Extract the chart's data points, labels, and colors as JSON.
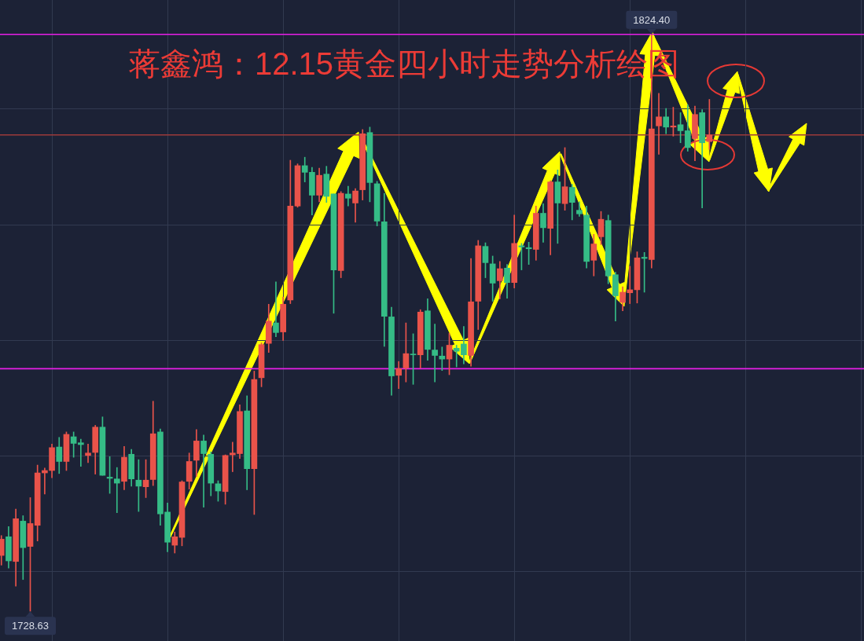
{
  "chart_data": {
    "type": "candlestick",
    "title": "蒋鑫鸿：12.15黄金四小时走势分析绘图",
    "categories": [
      null,
      null,
      null,
      null,
      null,
      null,
      null,
      null,
      null,
      null,
      null,
      null,
      null,
      null,
      null,
      null,
      null,
      null,
      null,
      null,
      null,
      null,
      null,
      null,
      null,
      null,
      null,
      null,
      null,
      null,
      null,
      null,
      null,
      null,
      null,
      null,
      null,
      null,
      null,
      null,
      null,
      null,
      null,
      null,
      null,
      null,
      null,
      null,
      null,
      null,
      null,
      null,
      null,
      null,
      null,
      null,
      null,
      null,
      null,
      null,
      null,
      null,
      null,
      null,
      null,
      null,
      null,
      null,
      null,
      null,
      null,
      null,
      null,
      null,
      null,
      null,
      null,
      null,
      null,
      null,
      null,
      null,
      null,
      null,
      null,
      null,
      null,
      null,
      null,
      null,
      null,
      null,
      null,
      null,
      null,
      null,
      null,
      null,
      null
    ],
    "ohlc": [
      [
        1737.9,
        1741.2,
        1736.3,
        1740.6
      ],
      [
        1741.0,
        1742.7,
        1735.8,
        1737.0
      ],
      [
        1736.9,
        1745.6,
        1732.8,
        1744.0
      ],
      [
        1743.6,
        1744.5,
        1733.9,
        1739.2
      ],
      [
        1739.4,
        1747.5,
        1728.63,
        1743.2
      ],
      [
        1742.9,
        1752.9,
        1740.3,
        1751.6
      ],
      [
        1751.6,
        1752.4,
        1748.1,
        1752.0
      ],
      [
        1752.0,
        1756.4,
        1750.8,
        1755.8
      ],
      [
        1755.9,
        1757.5,
        1751.5,
        1753.5
      ],
      [
        1753.5,
        1758.4,
        1752.0,
        1758.0
      ],
      [
        1757.6,
        1758.4,
        1754.2,
        1756.5
      ],
      [
        1756.6,
        1757.2,
        1752.7,
        1756.3
      ],
      [
        1754.5,
        1756.4,
        1753.3,
        1754.9
      ],
      [
        1755.0,
        1759.5,
        1751.4,
        1759.2
      ],
      [
        1759.2,
        1760.9,
        1751.2,
        1751.2
      ],
      [
        1750.9,
        1754.3,
        1748.2,
        1750.7
      ],
      [
        1750.6,
        1752.5,
        1745.0,
        1749.9
      ],
      [
        1750.2,
        1756.0,
        1748.8,
        1754.2
      ],
      [
        1754.7,
        1755.5,
        1749.4,
        1750.6
      ],
      [
        1750.4,
        1753.8,
        1745.2,
        1749.4
      ],
      [
        1749.3,
        1753.8,
        1747.5,
        1750.4
      ],
      [
        1750.5,
        1763.5,
        1749.5,
        1758.1
      ],
      [
        1758.4,
        1758.9,
        1742.9,
        1744.8
      ],
      [
        1745.1,
        1746.6,
        1738.5,
        1740.1
      ],
      [
        1739.6,
        1741.8,
        1738.3,
        1741.0
      ],
      [
        1740.9,
        1750.3,
        1739.5,
        1750.1
      ],
      [
        1750.2,
        1754.9,
        1748.9,
        1753.5
      ],
      [
        1753.7,
        1758.8,
        1751.0,
        1756.9
      ],
      [
        1756.9,
        1757.9,
        1745.9,
        1754.8
      ],
      [
        1754.7,
        1755.1,
        1747.8,
        1749.9
      ],
      [
        1749.8,
        1750.3,
        1746.9,
        1748.6
      ],
      [
        1748.5,
        1754.6,
        1746.4,
        1754.5
      ],
      [
        1754.6,
        1756.7,
        1751.8,
        1754.9
      ],
      [
        1754.8,
        1762.9,
        1754.0,
        1761.8
      ],
      [
        1761.9,
        1764.4,
        1748.8,
        1752.3
      ],
      [
        1752.3,
        1768.5,
        1744.7,
        1767.1
      ],
      [
        1767.4,
        1773.2,
        1765.9,
        1772.9
      ],
      [
        1773.1,
        1779.6,
        1771.6,
        1776.8
      ],
      [
        1776.5,
        1783.3,
        1774.2,
        1774.9
      ],
      [
        1775.0,
        1780.8,
        1773.6,
        1779.6
      ],
      [
        1780.3,
        1803.5,
        1779.7,
        1795.9
      ],
      [
        1795.9,
        1802.9,
        1795.7,
        1802.6
      ],
      [
        1802.6,
        1804.0,
        1799.9,
        1801.5
      ],
      [
        1801.5,
        1802.3,
        1794.4,
        1797.7
      ],
      [
        1797.7,
        1802.2,
        1796.6,
        1801.0
      ],
      [
        1801.2,
        1802.5,
        1796.5,
        1797.5
      ],
      [
        1797.9,
        1797.9,
        1778.1,
        1785.3
      ],
      [
        1785.2,
        1798.3,
        1784.0,
        1798.0
      ],
      [
        1797.9,
        1799.2,
        1795.9,
        1797.2
      ],
      [
        1796.4,
        1798.8,
        1793.2,
        1798.4
      ],
      [
        1798.6,
        1808.6,
        1796.9,
        1807.9
      ],
      [
        1808.1,
        1809.0,
        1796.6,
        1799.8
      ],
      [
        1799.6,
        1800.0,
        1792.6,
        1793.4
      ],
      [
        1793.3,
        1798.0,
        1772.6,
        1777.6
      ],
      [
        1777.5,
        1779.1,
        1764.5,
        1767.7
      ],
      [
        1767.8,
        1770.1,
        1765.6,
        1768.9
      ],
      [
        1769.0,
        1776.5,
        1766.7,
        1771.4
      ],
      [
        1771.3,
        1774.7,
        1766.3,
        1771.2
      ],
      [
        1771.2,
        1778.7,
        1769.0,
        1778.3
      ],
      [
        1778.5,
        1780.5,
        1770.3,
        1772.1
      ],
      [
        1772.0,
        1776.3,
        1766.7,
        1771.1
      ],
      [
        1771.0,
        1772.5,
        1768.6,
        1770.5
      ],
      [
        1770.5,
        1774.8,
        1767.9,
        1772.8
      ],
      [
        1772.3,
        1772.8,
        1769.2,
        1771.8
      ],
      [
        1773.0,
        1775.9,
        1769.7,
        1771.2
      ],
      [
        1771.1,
        1787.2,
        1769.3,
        1780.0
      ],
      [
        1780.1,
        1790.2,
        1775.4,
        1789.3
      ],
      [
        1789.2,
        1789.8,
        1784.0,
        1786.5
      ],
      [
        1786.3,
        1787.6,
        1780.1,
        1783.1
      ],
      [
        1783.5,
        1786.7,
        1780.5,
        1785.5
      ],
      [
        1785.6,
        1786.2,
        1780.6,
        1783.2
      ],
      [
        1783.2,
        1794.4,
        1782.3,
        1789.7
      ],
      [
        1789.3,
        1789.7,
        1785.3,
        1789.1
      ],
      [
        1789.0,
        1789.9,
        1786.2,
        1788.8
      ],
      [
        1788.7,
        1795.9,
        1786.9,
        1794.7
      ],
      [
        1794.7,
        1796.3,
        1789.9,
        1792.3
      ],
      [
        1792.2,
        1800.1,
        1787.8,
        1799.9
      ],
      [
        1799.9,
        1801.9,
        1789.7,
        1796.4
      ],
      [
        1796.3,
        1805.6,
        1795.2,
        1799.1
      ],
      [
        1799.0,
        1799.5,
        1793.6,
        1796.5
      ],
      [
        1795.2,
        1796.6,
        1794.2,
        1794.6
      ],
      [
        1794.4,
        1795.9,
        1785.6,
        1786.7
      ],
      [
        1786.9,
        1791.2,
        1784.3,
        1789.6
      ],
      [
        1790.8,
        1795.0,
        1789.5,
        1793.7
      ],
      [
        1793.5,
        1794.4,
        1783.0,
        1784.3
      ],
      [
        1784.5,
        1784.9,
        1776.8,
        1781.0
      ],
      [
        1779.9,
        1782.5,
        1778.5,
        1781.6
      ],
      [
        1781.5,
        1785.9,
        1779.7,
        1782.0
      ],
      [
        1782.0,
        1788.3,
        1779.8,
        1787.3
      ],
      [
        1787.4,
        1788.2,
        1781.6,
        1787.2
      ],
      [
        1787.0,
        1824.4,
        1785.6,
        1808.7
      ],
      [
        1809.2,
        1814.6,
        1804.5,
        1810.7
      ],
      [
        1810.7,
        1812.1,
        1807.9,
        1809.0
      ],
      [
        1809.0,
        1812.3,
        1807.5,
        1809.2
      ],
      [
        1809.4,
        1811.4,
        1806.4,
        1808.4
      ],
      [
        1808.4,
        1812.7,
        1805.0,
        1805.6
      ],
      [
        1807.1,
        1812.5,
        1803.4,
        1811.1
      ],
      [
        1811.4,
        1811.9,
        1795.6,
        1806.4
      ],
      [
        1806.6,
        1813.6,
        1805.3,
        1807.7
      ]
    ],
    "colors": [
      "#e9534a",
      "#35bc86",
      "#e9534a",
      "#35bc86",
      "#e9534a",
      "#e9534a",
      "#e9534a",
      "#e9534a",
      "#35bc86",
      "#e9534a",
      "#35bc86",
      "#35bc86",
      "#e9534a",
      "#e9534a",
      "#35bc86",
      "#35bc86",
      "#35bc86",
      "#e9534a",
      "#35bc86",
      "#35bc86",
      "#e9534a",
      "#e9534a",
      "#35bc86",
      "#35bc86",
      "#e9534a",
      "#e9534a",
      "#e9534a",
      "#e9534a",
      "#35bc86",
      "#35bc86",
      "#35bc86",
      "#e9534a",
      "#e9534a",
      "#e9534a",
      "#35bc86",
      "#e9534a",
      "#e9534a",
      "#e9534a",
      "#35bc86",
      "#e9534a",
      "#e9534a",
      "#e9534a",
      "#35bc86",
      "#35bc86",
      "#e9534a",
      "#35bc86",
      "#35bc86",
      "#e9534a",
      "#35bc86",
      "#e9534a",
      "#e9534a",
      "#35bc86",
      "#35bc86",
      "#35bc86",
      "#35bc86",
      "#e9534a",
      "#e9534a",
      "#35bc86",
      "#e9534a",
      "#35bc86",
      "#35bc86",
      "#35bc86",
      "#e9534a",
      "#35bc86",
      "#35bc86",
      "#e9534a",
      "#e9534a",
      "#35bc86",
      "#35bc86",
      "#e9534a",
      "#35bc86",
      "#e9534a",
      "#35bc86",
      "#35bc86",
      "#e9534a",
      "#35bc86",
      "#e9534a",
      "#35bc86",
      "#e9534a",
      "#35bc86",
      "#35bc86",
      "#35bc86",
      "#e9534a",
      "#e9534a",
      "#35bc86",
      "#35bc86",
      "#e9534a",
      "#e9534a",
      "#e9534a",
      "#35bc86",
      "#e9534a",
      "#e9534a",
      "#35bc86",
      "#e9534a",
      "#35bc86",
      "#35bc86",
      "#e9534a",
      "#35bc86",
      "#e9534a"
    ],
    "ylim": [
      1723.7,
      1830.1
    ],
    "yticks": [
      {
        "value": 1735.3,
        "label": null
      },
      {
        "value": 1754.4,
        "label": null
      },
      {
        "value": 1773.6,
        "label": null
      },
      {
        "value": 1792.8,
        "label": null
      },
      {
        "value": 1812.0,
        "label": null
      }
    ],
    "grid": true,
    "tick_labels": false,
    "ref_lines": [
      {
        "axis": "y",
        "value": 1824.4,
        "color": "#e81ee8"
      },
      {
        "axis": "y",
        "value": 1768.9,
        "color": "#e81ee8"
      },
      {
        "axis": "y",
        "value": 1807.7,
        "color": "#9c3a3a"
      }
    ],
    "annotations": [
      {
        "text": "1824.40",
        "y": 1824.4
      },
      {
        "text": "1728.63",
        "y": 1728.63
      }
    ]
  }
}
